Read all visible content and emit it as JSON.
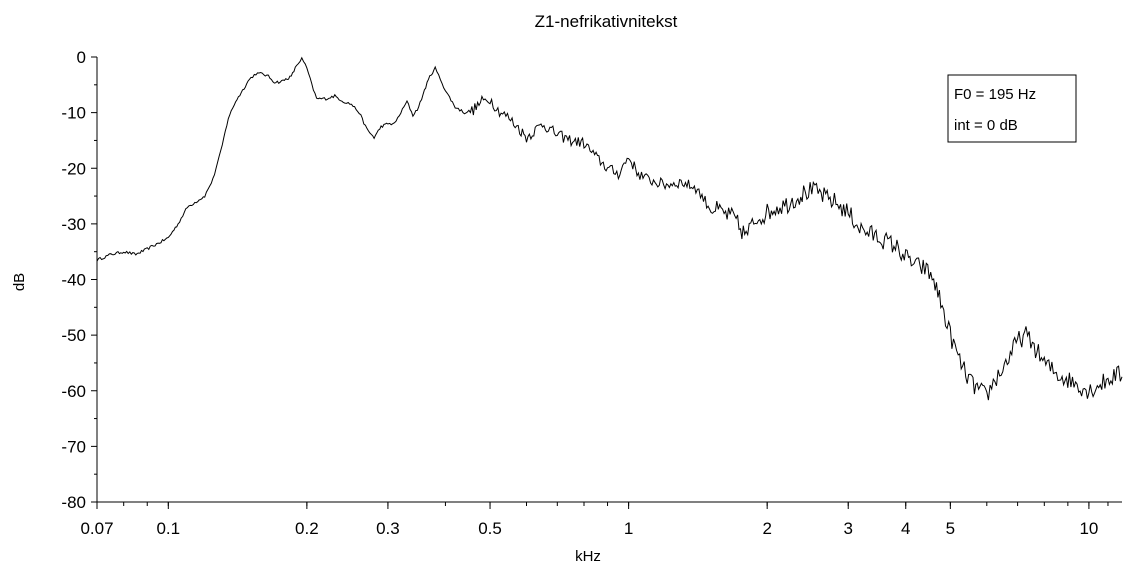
{
  "chart_data": {
    "type": "line",
    "title": "Z1-nefrikativnitekst",
    "xlabel": "kHz",
    "ylabel": "dB",
    "x_scale": "log",
    "xlim": [
      0.07,
      11.8
    ],
    "ylim": [
      -80,
      0
    ],
    "xticks": [
      0.07,
      0.1,
      0.2,
      0.3,
      0.5,
      1,
      2,
      3,
      4,
      5,
      10
    ],
    "xtick_labels": [
      "0.07",
      "0.1",
      "0.2",
      "0.3",
      "0.5",
      "1",
      "2",
      "3",
      "4",
      "5",
      "10"
    ],
    "yticks": [
      0,
      -10,
      -20,
      -30,
      -40,
      -50,
      -60,
      -70,
      -80
    ],
    "ytick_labels": [
      "0",
      "-10",
      "-20",
      "-30",
      "-40",
      "-50",
      "-60",
      "-70",
      "-80"
    ],
    "legend": {
      "lines": [
        "F0 = 195 Hz",
        "int = 0 dB"
      ],
      "placement": "top-right"
    },
    "series": [
      {
        "color": "#000000",
        "x": [
          0.07,
          0.075,
          0.08,
          0.085,
          0.09,
          0.095,
          0.1,
          0.105,
          0.11,
          0.115,
          0.12,
          0.125,
          0.13,
          0.135,
          0.14,
          0.145,
          0.15,
          0.155,
          0.16,
          0.165,
          0.17,
          0.175,
          0.18,
          0.185,
          0.19,
          0.195,
          0.2,
          0.205,
          0.21,
          0.22,
          0.23,
          0.24,
          0.25,
          0.26,
          0.27,
          0.28,
          0.29,
          0.3,
          0.31,
          0.32,
          0.33,
          0.34,
          0.35,
          0.36,
          0.37,
          0.38,
          0.39,
          0.4,
          0.42,
          0.44,
          0.46,
          0.48,
          0.5,
          0.52,
          0.55,
          0.58,
          0.6,
          0.65,
          0.7,
          0.75,
          0.8,
          0.85,
          0.9,
          0.95,
          1.0,
          1.05,
          1.1,
          1.2,
          1.3,
          1.4,
          1.5,
          1.6,
          1.7,
          1.75,
          1.8,
          1.9,
          2.0,
          2.1,
          2.2,
          2.3,
          2.4,
          2.5,
          2.6,
          2.7,
          2.8,
          3.0,
          3.2,
          3.4,
          3.6,
          3.8,
          4.0,
          4.2,
          4.4,
          4.6,
          4.8,
          5.0,
          5.2,
          5.4,
          5.6,
          5.8,
          6.0,
          6.2,
          6.5,
          6.8,
          7.0,
          7.3,
          7.6,
          8.0,
          8.5,
          9.0,
          9.5,
          10.0,
          10.5,
          11.0,
          11.5,
          11.8
        ],
        "y": [
          -36.5,
          -35.5,
          -35,
          -35.5,
          -34.5,
          -33.5,
          -32.5,
          -30,
          -27,
          -26,
          -25,
          -22,
          -17,
          -11,
          -8,
          -6,
          -4,
          -3,
          -3,
          -3.5,
          -4.5,
          -4.5,
          -4,
          -3.5,
          -1.5,
          -0.3,
          -2,
          -5,
          -7.5,
          -7.5,
          -7,
          -8,
          -8.5,
          -10,
          -13,
          -14.5,
          -12.5,
          -12,
          -12,
          -10,
          -8,
          -10.5,
          -9,
          -6,
          -3.5,
          -2,
          -4,
          -6,
          -9,
          -10,
          -9.5,
          -8,
          -7.5,
          -9.5,
          -11,
          -13,
          -14.5,
          -12,
          -14,
          -15,
          -15.5,
          -18,
          -20,
          -21,
          -18,
          -21,
          -22,
          -23,
          -22.5,
          -23.5,
          -27,
          -28,
          -29,
          -31,
          -32,
          -29,
          -28,
          -27,
          -26.5,
          -25.5,
          -24.5,
          -24,
          -24.5,
          -25.5,
          -26,
          -28,
          -31,
          -32,
          -33,
          -34,
          -36,
          -37.5,
          -38,
          -40,
          -45,
          -50,
          -54,
          -57,
          -59,
          -60,
          -61,
          -58.5,
          -56,
          -53,
          -51,
          -50,
          -52,
          -55,
          -57,
          -58,
          -59,
          -60,
          -59,
          -58,
          -57,
          -57.5
        ]
      }
    ]
  }
}
